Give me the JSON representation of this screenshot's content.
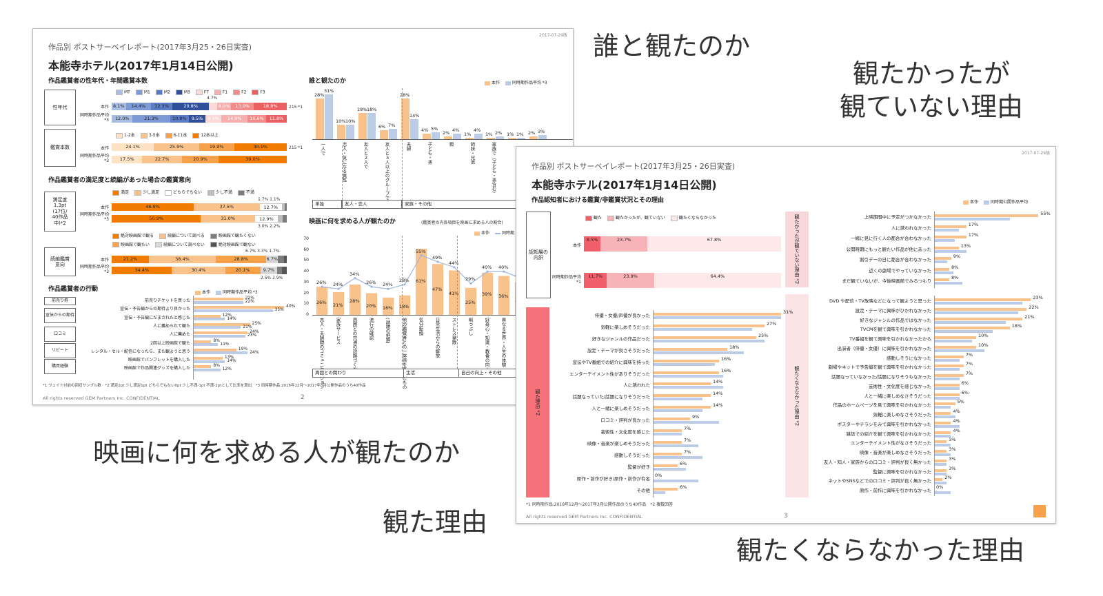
{
  "captions": {
    "with_whom": "誰と観たのか",
    "wanted_not": "観たかったが\n観ていない理由",
    "seek": "映画に何を求める人が観たのか",
    "reasons": "観た理由",
    "not_want": "観たくならなかった理由"
  },
  "slide1": {
    "date": "2017-07-29版",
    "subtitle": "作品別 ポストサーベイレポート(2017年3月25・26日実査)",
    "title": "本能寺ホテル(2017年1月14日公開)",
    "sec_demo": "作品鑑賞者の性年代・年間鑑賞本数",
    "demo_legend": [
      "MT",
      "M1",
      "M2",
      "M3",
      "FT",
      "F1",
      "F2",
      "F3"
    ],
    "demo_colors": [
      "#a9bde3",
      "#7d9ad6",
      "#5b7bc6",
      "#2f4f9a",
      "#fbd9d9",
      "#f7b0b0",
      "#f28b8b",
      "#eb5f62"
    ],
    "label_gender": "性年代",
    "label_count": "鑑賞本数",
    "row_this": "本作",
    "row_avg": "同時期作品平均 *3",
    "gender_this": [
      "8.1%",
      "14.4%",
      "12.3%",
      "20.8%",
      "",
      "8.0%",
      "13.0%",
      "18.8%"
    ],
    "gender_this_v": [
      8.1,
      14.4,
      12.3,
      20.8,
      4.7,
      8.0,
      13.0,
      18.8
    ],
    "gender_this_top": "4.7%",
    "gender_avg": [
      "12.0%",
      "21.3%",
      "10.8%",
      "9.5%",
      "9.1%",
      "14.9%",
      "10.6%",
      "11.8%"
    ],
    "gender_avg_v": [
      12.0,
      21.3,
      10.8,
      9.5,
      9.1,
      14.9,
      10.6,
      11.8
    ],
    "n_this": "215 *1",
    "count_legend": [
      "1-2本",
      "3-5本",
      "6-11本",
      "12本以上"
    ],
    "count_colors": [
      "#fde2c4",
      "#f9c28a",
      "#f7a24a",
      "#f27c00"
    ],
    "count_this": [
      "24.1%",
      "25.9%",
      "19.9%",
      "30.1%"
    ],
    "count_avg": [
      "17.5%",
      "22.7%",
      "20.9%",
      "39.0%"
    ],
    "sec_sat": "作品鑑賞者の満足度と続編があった場合の鑑賞意向",
    "sat_legend": [
      "満足",
      "少し満足",
      "どちらでもない",
      "少し不満",
      "不満"
    ],
    "sat_colors": [
      "#f27c00",
      "#f9c28a",
      "#ffffff",
      "#bdbdbd",
      "#7d7d7d"
    ],
    "sat_box": "満足度\n1.3pt\n(17位/\n40作品\n中)*2",
    "sat_this": [
      "46.9%",
      "37.5%",
      "12.7%",
      "1.7%",
      "1.1%"
    ],
    "sat_avg": [
      "50.9%",
      "31.0%",
      "12.9%",
      "3.0%",
      "2.2%"
    ],
    "seq_legend": [
      "絶対映画館で観る",
      "続編について調べる",
      "映画館で観たくない",
      "映画館で観たい",
      "続編について調べない",
      "絶対映画館で観ない"
    ],
    "seq_colors": [
      "#f27c00",
      "#f9c28a",
      "#7d7d7d",
      "#f7a24a",
      "#d9d9d9",
      "#555555"
    ],
    "seq_box": "続編鑑賞\n意向",
    "seq_this": [
      "21.2%",
      "38.4%",
      "28.8%",
      "6.7%",
      "3.3%",
      "1.7%"
    ],
    "seq_avg": [
      "34.4%",
      "30.4%",
      "20.1%",
      "9.7%",
      "2.5%",
      "2.9%"
    ],
    "sec_act": "作品鑑賞者の行動",
    "act_legend": [
      "本作",
      "同時期作品平均 *3"
    ],
    "act_groups": [
      "前売り券",
      "宣伝からの期待",
      "口コミ",
      "リピート",
      "購買経験"
    ],
    "act_items": [
      {
        "label": "前売りチケットを買った",
        "a": 22,
        "b": 22,
        "av": "22%",
        "bv": "22%"
      },
      {
        "label": "宣伝・予告編からの期待より良かった",
        "a": 40,
        "b": 35,
        "av": "40%",
        "bv": "35%"
      },
      {
        "label": "宣伝・予告編にだまされたと感じた",
        "a": 12,
        "b": 14,
        "av": "12%",
        "bv": "14%"
      },
      {
        "label": "人に薦められて観た",
        "a": 25,
        "b": 21,
        "av": "25%",
        "bv": "21%"
      },
      {
        "label": "人に薦めた",
        "a": 24,
        "b": 23,
        "av": "24%",
        "bv": "23%"
      },
      {
        "label": "2回以上映画館で観た",
        "a": 8,
        "b": 11,
        "av": "8%",
        "bv": "11%"
      },
      {
        "label": "レンタル・セル・配信になったら、また観ようと思う",
        "a": 19,
        "b": 24,
        "av": "19%",
        "bv": "24%"
      },
      {
        "label": "映画館でパンフレットを購入した",
        "a": 13,
        "b": 14,
        "av": "13%",
        "bv": "14%"
      },
      {
        "label": "映画館で作品関連グッズを購入した",
        "a": 8,
        "b": 12,
        "av": "8%",
        "bv": "12%"
      }
    ],
    "sec_who": "誰と観たのか",
    "who_legend": [
      "本作",
      "同時期作品平均 *3"
    ],
    "who_items": [
      {
        "label": "一人で",
        "a": 28,
        "b": 31,
        "av": "28%",
        "bv": "31%"
      },
      {
        "label": "恋人・気になる異性",
        "a": 10,
        "b": 10,
        "av": "10%",
        "bv": "10%"
      },
      {
        "label": "友人と２人で",
        "a": 18,
        "b": 18,
        "av": "18%",
        "bv": "18%"
      },
      {
        "label": "友人と３人以上のグループで",
        "a": 6,
        "b": 7,
        "av": "6%",
        "bv": "7%"
      },
      {
        "label": "夫婦",
        "a": 28,
        "b": 14,
        "av": "28%",
        "bv": "14%"
      },
      {
        "label": "子ども・孫",
        "a": 4,
        "b": 5,
        "av": "4%",
        "bv": "5%"
      },
      {
        "label": "親",
        "a": 2,
        "b": 4,
        "av": "2%",
        "bv": "4%"
      },
      {
        "label": "姉妹・兄弟",
        "a": 1,
        "b": 4,
        "av": "1%",
        "bv": "4%"
      },
      {
        "label": "家族で（子ども・孫含む）",
        "a": 1,
        "b": 2,
        "av": "1%",
        "bv": "2%"
      },
      {
        "label": "",
        "a": 1,
        "b": 1,
        "av": "1%",
        "bv": "1%"
      },
      {
        "label": "",
        "a": 2,
        "b": 3,
        "av": "2%",
        "bv": "3%"
      }
    ],
    "who_groups": [
      "単独",
      "友人・恋人",
      "家族・その他"
    ],
    "sec_seek": "映画に何を求める人が観たのか",
    "seek_note": "(鑑賞者の内各項目を映画に求める人の割合)",
    "seek_legend": [
      "本作",
      "同時期"
    ],
    "seek_axis": [
      "70",
      "60",
      "50",
      "40",
      "30",
      "20",
      "10",
      "0"
    ],
    "seek_items": [
      {
        "label": "恋人・夫婦間のコミュニケーション",
        "a": 26,
        "b": 26,
        "av": "26%",
        "bv": "26%"
      },
      {
        "label": "家族サービス",
        "a": 21,
        "b": 24,
        "av": "21%",
        "bv": "24%"
      },
      {
        "label": "周囲との共通の話題づくり",
        "a": 28,
        "b": 34,
        "av": "28%",
        "bv": "34%"
      },
      {
        "label": "流行の確認",
        "a": 20,
        "b": 26,
        "av": "20%",
        "bv": "26%"
      },
      {
        "label": "(話題の把握)",
        "a": 16,
        "b": 24,
        "av": "16%",
        "bv": "24%"
      },
      {
        "label": "他の鑑賞者との一体感を楽しむもの",
        "a": 18,
        "b": 28,
        "av": "18%",
        "bv": "28%"
      },
      {
        "label": "気分転換",
        "a": 61,
        "b": 55,
        "av": "61%",
        "bv": "55%"
      },
      {
        "label": "日常生活からの解放",
        "a": 47,
        "b": 49,
        "av": "47%",
        "bv": "49%"
      },
      {
        "label": "ストレス発散",
        "a": 41,
        "b": 44,
        "av": "41%",
        "bv": "44%"
      },
      {
        "label": "暇つぶし",
        "a": 25,
        "b": 29,
        "av": "25%",
        "bv": "29%"
      },
      {
        "label": "好奇心・知識・教養の向上",
        "a": 39,
        "b": 40,
        "av": "39%",
        "bv": "40%"
      },
      {
        "label": "異なる世界・人生の体験",
        "a": 36,
        "b": 40,
        "av": "36%",
        "bv": "40%"
      },
      {
        "label": "芸術作品の鑑賞",
        "a": 30,
        "b": 34,
        "av": "30%",
        "bv": "34%"
      },
      {
        "label": "表現手法の体験",
        "a": 29,
        "b": 37,
        "av": "29%",
        "bv": "37%"
      }
    ],
    "seek_groups": [
      "周囲との関わり",
      "生活",
      "自己の向上・その他"
    ],
    "foot1": "*1 ウェイト付前の回収サンプル数　*2 満足2pt 少し満足1pt どちらでもない0pt 少し不満-1pt 不満-2ptとして比率を算出　*3 同時期作品:2016年12月～2017年3月公開作品のうち40作品",
    "footer": "All rights reserved GEM Partners Inc. CONFIDENTIAL",
    "page": "2"
  },
  "slide2": {
    "date": "2017-07-29版",
    "subtitle": "作品別 ポストサーベイレポート(2017年3月25・26日実査)",
    "title": "本能寺ホテル(2017年1月14日公開)",
    "sec": "作品認知者における鑑賞/非鑑賞状況とその理由",
    "legend_top": [
      "本作",
      "同時期公開作品平均"
    ],
    "aware_legend": [
      "観た",
      "観たかったが、観ていない",
      "観たくならなかった"
    ],
    "aware_colors": [
      "#f0606a",
      "#f7b3b8",
      "#fde8ea"
    ],
    "aware_box": "認知層の内訳",
    "aware_this_label": "本作",
    "aware_avg_label": "同時期作品平均*1",
    "aware_this": [
      "8.5%",
      "23.7%",
      "67.8%"
    ],
    "aware_this_v": [
      8.5,
      23.7,
      67.8
    ],
    "aware_avg": [
      "11.7%",
      "23.9%",
      "64.4%"
    ],
    "aware_avg_v": [
      11.7,
      23.9,
      64.4
    ],
    "label_wanted": "観たかったが観ていない理由 *2",
    "wanted_items": [
      {
        "label": "上映期間中に予定がつかなかった",
        "a": 55,
        "b": 40,
        "av": "55%"
      },
      {
        "label": "人に誘われなかった",
        "a": 17,
        "b": 13,
        "av": "17%"
      },
      {
        "label": "一緒に見に行く人の都合が合わなかった",
        "a": 17,
        "b": 11,
        "av": "17%"
      },
      {
        "label": "公開時期にもっと観たい作品が他にあった",
        "a": 13,
        "b": 17,
        "av": "13%"
      },
      {
        "label": "割引デーの日に都合が合わなかった",
        "a": 9,
        "b": 7,
        "av": "9%"
      },
      {
        "label": "近くの劇場でやっていなかった",
        "a": 8,
        "b": 10,
        "av": "8%"
      },
      {
        "label": "まだ観ていないが、今後映画館でみるつもり",
        "a": 8,
        "b": 15,
        "av": "8%"
      }
    ],
    "label_reasons": "観た理由 *2",
    "reasons_items": [
      {
        "label": "俳優・女優/声優が良かった",
        "a": 31,
        "b": 31,
        "av": "31%"
      },
      {
        "label": "気軽に楽しめそうだった",
        "a": 27,
        "b": 24,
        "av": "27%"
      },
      {
        "label": "好きなジャンルの作品だった",
        "a": 25,
        "b": 27,
        "av": "25%"
      },
      {
        "label": "設定・テーマが良さそうだった",
        "a": 18,
        "b": 22,
        "av": "18%"
      },
      {
        "label": "宣伝やTV番組での紹介に興味を持った",
        "a": 16,
        "b": 15,
        "av": "16%"
      },
      {
        "label": "エンターテイメント性がありそうだった",
        "a": 16,
        "b": 17,
        "av": "16%"
      },
      {
        "label": "人に誘われた",
        "a": 14,
        "b": 17,
        "av": "14%"
      },
      {
        "label": "話題なっていた/話題になりそうだった",
        "a": 14,
        "b": 12,
        "av": "14%"
      },
      {
        "label": "人と一緒に楽しめそうだった",
        "a": 14,
        "b": 12,
        "av": "14%"
      },
      {
        "label": "口コミ・評判が良かった",
        "a": 9,
        "b": 16,
        "av": "9%"
      },
      {
        "label": "芸術性・文化度を感じた",
        "a": 7,
        "b": 7,
        "av": "7%"
      },
      {
        "label": "映像・音楽が楽しめそうだった",
        "a": 7,
        "b": 11,
        "av": "7%"
      },
      {
        "label": "感動しそうだった",
        "a": 7,
        "b": 12,
        "av": "7%"
      },
      {
        "label": "監督が好き",
        "a": 6,
        "b": 8,
        "av": "6%"
      },
      {
        "label": "原作・前作が好き/原作・前作が有名",
        "a": 0,
        "b": 11,
        "av": "0%"
      },
      {
        "label": "その他",
        "a": 6,
        "b": 3,
        "av": "6%"
      }
    ],
    "label_not": "観たくならなかった理由 *2",
    "not_items": [
      {
        "label": "DVD や配信・TV放映などになって観ようと思った",
        "a": 23,
        "b": 21,
        "av": "23%"
      },
      {
        "label": "設定・テーマに興味がひかれなかった",
        "a": 22,
        "b": 20,
        "av": "22%"
      },
      {
        "label": "好きなジャンルの作品ではなかった",
        "a": 21,
        "b": 17,
        "av": "21%"
      },
      {
        "label": "TVCMを観て興味を引かれなかった",
        "a": 18,
        "b": 14,
        "av": "18%"
      },
      {
        "label": "TV番組を観て興味を引かれなかったから",
        "a": 10,
        "b": 9,
        "av": "10%"
      },
      {
        "label": "出演者（俳優・女優）に興味を引かれなかった",
        "a": 10,
        "b": 12,
        "av": "10%"
      },
      {
        "label": "感動しそうになかった",
        "a": 7,
        "b": 6,
        "av": "7%"
      },
      {
        "label": "劇場やネットで予告編を観て興味を引かれなかった",
        "a": 7,
        "b": 6,
        "av": "7%"
      },
      {
        "label": "話題なっていなかった/話題になりそうもなかった",
        "a": 7,
        "b": 6,
        "av": "7%"
      },
      {
        "label": "芸術性・文化度を感じなかった",
        "a": 6,
        "b": 6,
        "av": "6%"
      },
      {
        "label": "人と一緒に楽しめなさそうだった",
        "a": 6,
        "b": 6,
        "av": "6%"
      },
      {
        "label": "作品のホームページを見て興味を引かれなかった",
        "a": 5,
        "b": 4,
        "av": "5%"
      },
      {
        "label": "気軽に楽しめなさそうだった",
        "a": 4,
        "b": 5,
        "av": "4%"
      },
      {
        "label": "ポスターやチラシをみて興味を引かれなかった",
        "a": 4,
        "b": 6,
        "av": "4%"
      },
      {
        "label": "雑誌での紹介を観て興味を引かれなかった",
        "a": 4,
        "b": 4,
        "av": "4%"
      },
      {
        "label": "エンターテイメント性がなさそうだった",
        "a": 3,
        "b": 4,
        "av": "3%"
      },
      {
        "label": "映像・音楽が楽しめなさそうだった",
        "a": 3,
        "b": 4,
        "av": "3%"
      },
      {
        "label": "友人・知人・家族からの口コミ・評判が良く無かった",
        "a": 3,
        "b": 3,
        "av": "3%"
      },
      {
        "label": "監督に興味を引かれなかった",
        "a": 3,
        "b": 3,
        "av": "3%"
      },
      {
        "label": "ネットやSNSなどでの口コミ・評判が良く無かった",
        "a": 2,
        "b": 3,
        "av": "2%"
      },
      {
        "label": "原作・前作に興味を引かれなかった",
        "a": 0,
        "b": 4,
        "av": "0%"
      }
    ],
    "foot1": "*1 同時期作品:2016年12月～2017年3月公開作品のうち40作品　*2 複数回答",
    "footer": "All rights reserved GEM Partners Inc. CONFIDENTIAL",
    "page": "3"
  },
  "colors": {
    "this": "#f9c28a",
    "avg": "#bccbe6",
    "line": "#9fb6de",
    "pink": "#f8d7da",
    "pinkdark": "#f5727a",
    "orange": "#f27c00"
  }
}
